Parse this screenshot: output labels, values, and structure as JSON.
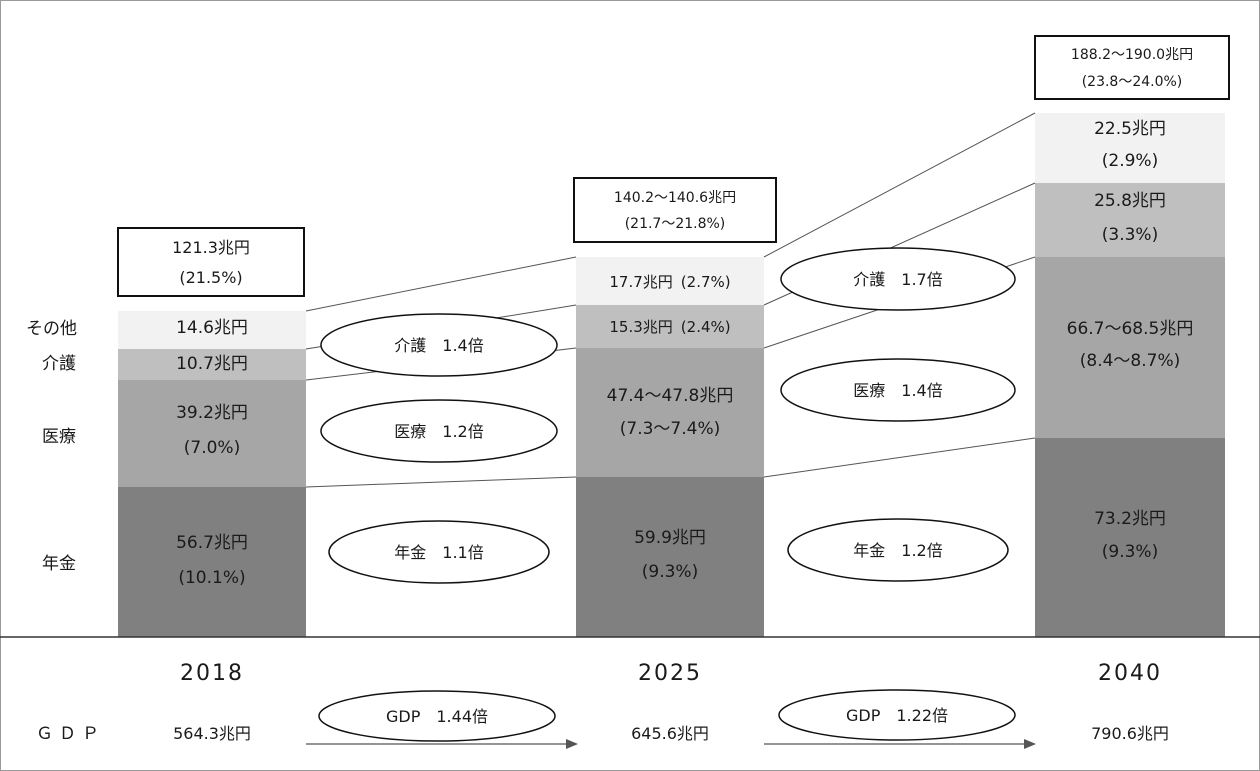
{
  "chart_data": {
    "type": "bar",
    "stacked": true,
    "categories": [
      "2018",
      "2025",
      "2040"
    ],
    "series": [
      {
        "name": "年金",
        "values": [
          56.7,
          59.9,
          73.2
        ],
        "labels": [
          "56.7兆円",
          "59.9兆円",
          "73.2兆円"
        ],
        "pct": [
          "(10.1%)",
          "(9.3%)",
          "(9.3%)"
        ]
      },
      {
        "name": "医療",
        "values": [
          39.2,
          47.6,
          67.6
        ],
        "labels": [
          "39.2兆円",
          "47.4～47.8兆円",
          "66.7～68.5兆円"
        ],
        "pct": [
          "(7.0%)",
          "(7.3～7.4%)",
          "(8.4～8.7%)"
        ]
      },
      {
        "name": "介護",
        "values": [
          10.7,
          15.3,
          25.8
        ],
        "labels": [
          "10.7兆円",
          "15.3兆円",
          "25.8兆円"
        ],
        "pct": [
          "",
          "(2.4%)",
          "(3.3%)"
        ]
      },
      {
        "name": "その他",
        "values": [
          14.6,
          17.7,
          22.5
        ],
        "labels": [
          "14.6兆円",
          "17.7兆円",
          "22.5兆円"
        ],
        "pct": [
          "",
          "(2.7%)",
          "(2.9%)"
        ]
      }
    ],
    "totals": [
      {
        "amount": "121.3兆円",
        "pct": "(21.5%)"
      },
      {
        "amount": "140.2～140.6兆円",
        "pct": "(21.7～21.8%)"
      },
      {
        "amount": "188.2～190.0兆円",
        "pct": "(23.8～24.0%)"
      }
    ],
    "growth": [
      {
        "nenkin": "年金　1.1倍",
        "iryo": "医療　1.2倍",
        "kaigo": "介護　1.4倍"
      },
      {
        "nenkin": "年金　1.2倍",
        "iryo": "医療　1.4倍",
        "kaigo": "介護　1.7倍"
      }
    ],
    "gdp": {
      "row_label": "ＧＤＰ",
      "values": [
        "564.3兆円",
        "645.6兆円",
        "790.6兆円"
      ],
      "growth": [
        "GDP　1.44倍",
        "GDP　1.22倍"
      ]
    },
    "colors": {
      "年金": "#808080",
      "医療": "#a6a6a6",
      "介護": "#bfbfbf",
      "その他": "#f2f2f2"
    }
  }
}
